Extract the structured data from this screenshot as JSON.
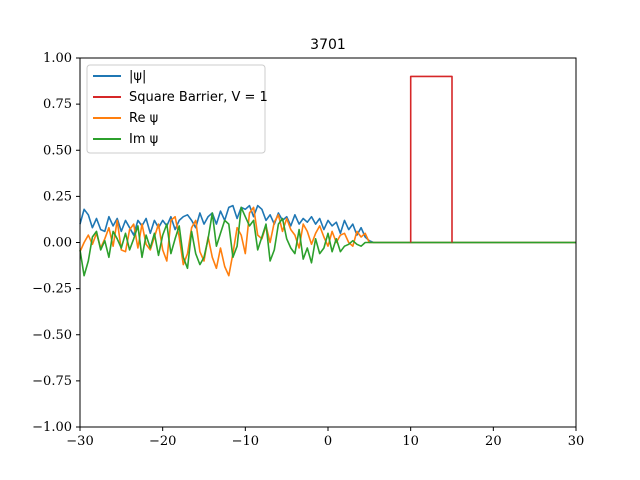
{
  "chart_data": {
    "type": "line",
    "title": "3701",
    "xlabel": "",
    "ylabel": "",
    "xlim": [
      -30,
      30
    ],
    "ylim": [
      -1.0,
      1.0
    ],
    "grid": false,
    "legend_position": "top-left",
    "x_ticks": [
      -30,
      -20,
      -10,
      0,
      10,
      20,
      30
    ],
    "x_tick_labels": [
      "−30",
      "−20",
      "−10",
      "0",
      "10",
      "20",
      "30"
    ],
    "y_ticks": [
      -1.0,
      -0.75,
      -0.5,
      -0.25,
      0.0,
      0.25,
      0.5,
      0.75,
      1.0
    ],
    "y_tick_labels": [
      "−1.00",
      "−0.75",
      "−0.50",
      "−0.25",
      "0.00",
      "0.25",
      "0.50",
      "0.75",
      "1.00"
    ],
    "series": [
      {
        "name": "|ψ|",
        "color": "#1f77b4",
        "x": [
          -30,
          -29.5,
          -29,
          -28.5,
          -28,
          -27.5,
          -27,
          -26.5,
          -26,
          -25.5,
          -25,
          -24.5,
          -24,
          -23.5,
          -23,
          -22.5,
          -22,
          -21.5,
          -21,
          -20.5,
          -20,
          -19.5,
          -19,
          -18.5,
          -18,
          -17.5,
          -17,
          -16.5,
          -16,
          -15.5,
          -15,
          -14.5,
          -14,
          -13.5,
          -13,
          -12.5,
          -12,
          -11.5,
          -11,
          -10.5,
          -10,
          -9.5,
          -9,
          -8.5,
          -8,
          -7.5,
          -7,
          -6.5,
          -6,
          -5.5,
          -5,
          -4.5,
          -4,
          -3.5,
          -3,
          -2.5,
          -2,
          -1.5,
          -1,
          -0.5,
          0,
          0.5,
          1,
          1.5,
          2,
          2.5,
          3,
          3.5,
          4,
          4.5,
          5,
          5.5,
          6,
          30
        ],
        "y": [
          0.1,
          0.18,
          0.15,
          0.08,
          0.13,
          0.07,
          0.06,
          0.14,
          0.09,
          0.13,
          0.06,
          0.12,
          0.08,
          0.04,
          0.12,
          0.09,
          0.13,
          0.05,
          0.12,
          0.08,
          0.12,
          0.09,
          0.14,
          0.07,
          0.12,
          0.14,
          0.15,
          0.12,
          0.08,
          0.16,
          0.1,
          0.14,
          0.16,
          0.1,
          0.17,
          0.12,
          0.19,
          0.2,
          0.13,
          0.19,
          0.18,
          0.2,
          0.14,
          0.2,
          0.18,
          0.12,
          0.15,
          0.1,
          0.16,
          0.12,
          0.14,
          0.09,
          0.15,
          0.1,
          0.13,
          0.11,
          0.14,
          0.1,
          0.13,
          0.07,
          0.12,
          0.09,
          0.11,
          0.05,
          0.12,
          0.07,
          0.1,
          0.04,
          0.08,
          0.03,
          0.01,
          0.0,
          0.0,
          0.0
        ]
      },
      {
        "name": "Square Barrier, V = 1",
        "color": "#d62728",
        "x": [
          10,
          10,
          15,
          15
        ],
        "y": [
          0.0,
          0.9,
          0.9,
          0.0
        ]
      },
      {
        "name": "Re ψ",
        "color": "#ff7f0e",
        "x": [
          -30,
          -29.5,
          -29,
          -28.5,
          -28,
          -27.5,
          -27,
          -26.5,
          -26,
          -25.5,
          -25,
          -24.5,
          -24,
          -23.5,
          -23,
          -22.5,
          -22,
          -21.5,
          -21,
          -20.5,
          -20,
          -19.5,
          -19,
          -18.5,
          -18,
          -17.5,
          -17,
          -16.5,
          -16,
          -15.5,
          -15,
          -14.5,
          -14,
          -13.5,
          -13,
          -12.5,
          -12,
          -11.5,
          -11,
          -10.5,
          -10,
          -9.5,
          -9,
          -8.5,
          -8,
          -7.5,
          -7,
          -6.5,
          -6,
          -5.5,
          -5,
          -4.5,
          -4,
          -3.5,
          -3,
          -2.5,
          -2,
          -1.5,
          -1,
          -0.5,
          0,
          0.5,
          1,
          1.5,
          2,
          2.5,
          3,
          3.5,
          4,
          4.5,
          5,
          5.5,
          6,
          30
        ],
        "y": [
          -0.05,
          0.0,
          0.04,
          -0.01,
          0.05,
          -0.03,
          0.02,
          0.08,
          -0.02,
          0.12,
          -0.04,
          -0.05,
          0.07,
          0.1,
          -0.03,
          0.1,
          -0.01,
          -0.04,
          0.03,
          0.1,
          -0.04,
          -0.1,
          0.12,
          0.14,
          0.03,
          -0.12,
          -0.06,
          0.08,
          0.12,
          -0.05,
          -0.1,
          0.03,
          -0.08,
          -0.14,
          -0.03,
          -0.13,
          -0.18,
          -0.06,
          0.08,
          0.04,
          -0.06,
          0.16,
          0.19,
          0.04,
          0.02,
          0.09,
          0.0,
          0.11,
          0.15,
          0.06,
          0.13,
          0.07,
          0.04,
          -0.03,
          0.1,
          0.06,
          -0.01,
          0.05,
          0.09,
          0.03,
          -0.02,
          0.06,
          0.0,
          0.04,
          0.05,
          0.0,
          -0.02,
          0.06,
          0.03,
          0.05,
          0.0,
          0.0,
          0.0,
          0.0
        ]
      },
      {
        "name": "Im ψ",
        "color": "#2ca02c",
        "x": [
          -30,
          -29.5,
          -29,
          -28.5,
          -28,
          -27.5,
          -27,
          -26.5,
          -26,
          -25.5,
          -25,
          -24.5,
          -24,
          -23.5,
          -23,
          -22.5,
          -22,
          -21.5,
          -21,
          -20.5,
          -20,
          -19.5,
          -19,
          -18.5,
          -18,
          -17.5,
          -17,
          -16.5,
          -16,
          -15.5,
          -15,
          -14.5,
          -14,
          -13.5,
          -13,
          -12.5,
          -12,
          -11.5,
          -11,
          -10.5,
          -10,
          -9.5,
          -9,
          -8.5,
          -8,
          -7.5,
          -7,
          -6.5,
          -6,
          -5.5,
          -5,
          -4.5,
          -4,
          -3.5,
          -3,
          -2.5,
          -2,
          -1.5,
          -1,
          -0.5,
          0,
          0.5,
          1,
          1.5,
          2,
          2.5,
          3,
          3.5,
          4,
          4.5,
          5,
          5.5,
          6,
          30
        ],
        "y": [
          -0.04,
          -0.18,
          -0.1,
          0.03,
          0.06,
          -0.04,
          0.01,
          -0.08,
          0.06,
          0.02,
          -0.03,
          0.05,
          -0.04,
          0.02,
          0.09,
          -0.08,
          0.04,
          -0.03,
          0.05,
          -0.07,
          0.04,
          0.1,
          -0.06,
          0.02,
          0.09,
          -0.08,
          -0.14,
          0.06,
          -0.06,
          -0.12,
          -0.08,
          0.02,
          0.16,
          -0.02,
          0.05,
          0.12,
          0.1,
          -0.08,
          -0.02,
          0.19,
          0.14,
          0.09,
          0.12,
          -0.04,
          0.03,
          0.1,
          -0.1,
          -0.04,
          0.1,
          0.13,
          0.02,
          -0.03,
          -0.06,
          0.07,
          -0.09,
          -0.03,
          -0.11,
          0.02,
          -0.06,
          -0.03,
          0.05,
          -0.05,
          0.02,
          -0.05,
          -0.02,
          -0.01,
          0.01,
          -0.01,
          -0.02,
          0.0,
          0.0,
          0.0,
          0.0,
          0.0
        ]
      }
    ]
  },
  "legend": [
    {
      "label": "|ψ|",
      "color": "#1f77b4"
    },
    {
      "label": "Square Barrier, V = 1",
      "color": "#d62728"
    },
    {
      "label": "Re ψ",
      "color": "#ff7f0e"
    },
    {
      "label": "Im ψ",
      "color": "#2ca02c"
    }
  ]
}
